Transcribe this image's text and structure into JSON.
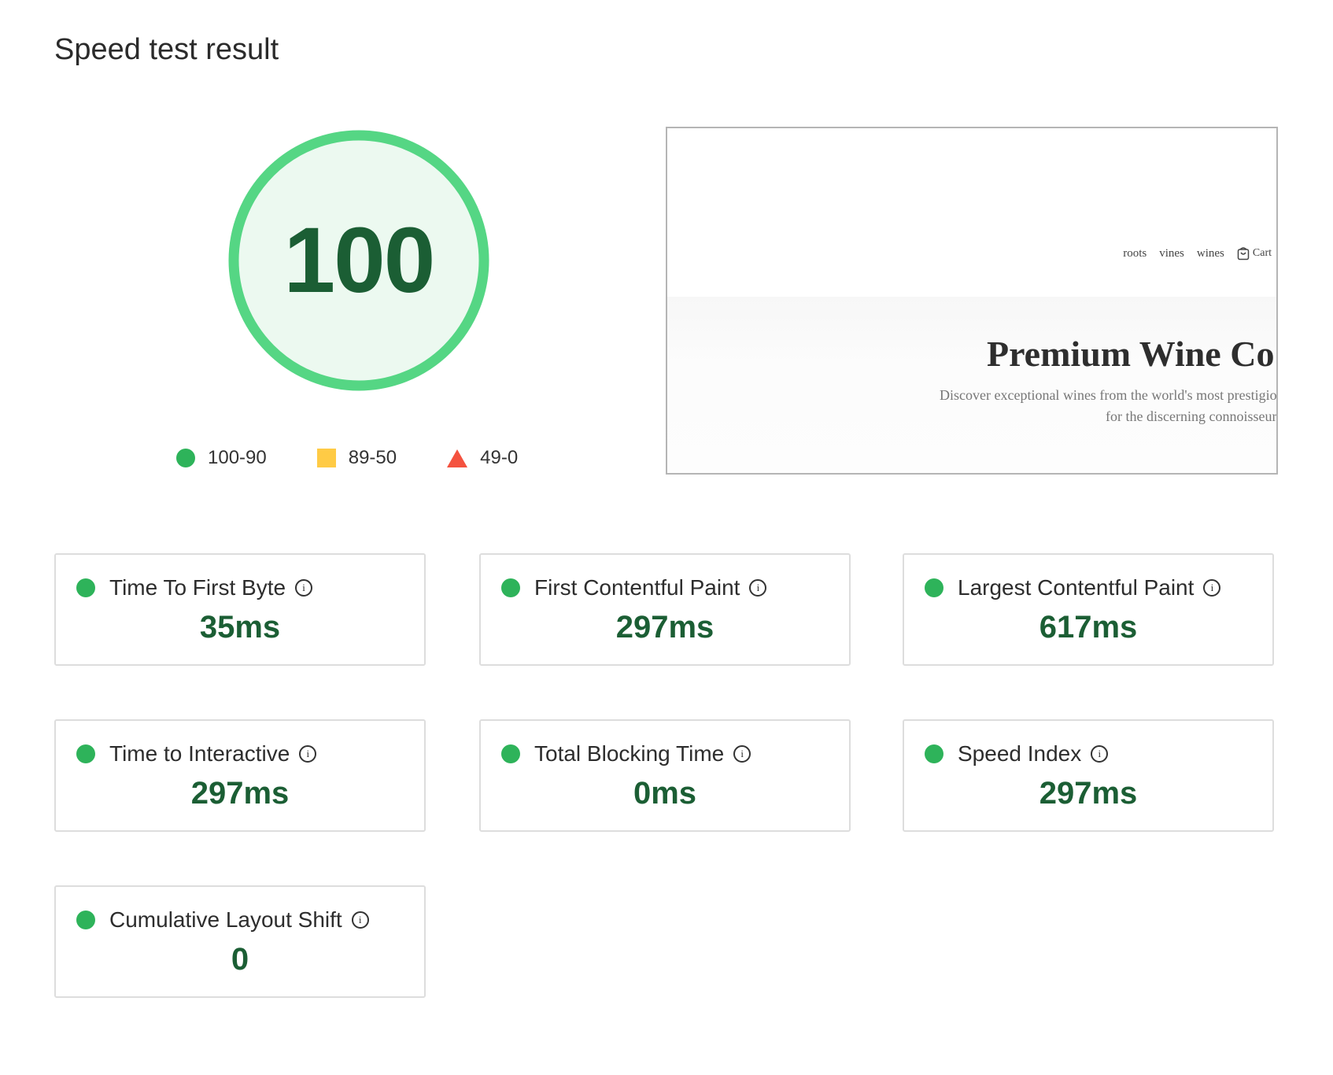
{
  "title": "Speed test result",
  "score": {
    "value": "100",
    "level": 100,
    "color": "#55d684",
    "fill": "#ecf9f0",
    "text_color": "#1b5e34"
  },
  "legend": [
    {
      "icon": "circle",
      "label": "100-90",
      "color": "#2eb35a"
    },
    {
      "icon": "square",
      "label": "89-50",
      "color": "#ffcb45"
    },
    {
      "icon": "triangle",
      "label": "49-0",
      "color": "#f4523f"
    }
  ],
  "preview": {
    "nav": [
      "roots",
      "vines",
      "wines"
    ],
    "cart": "Cart",
    "hero": "Premium Wine Co",
    "sub1": "Discover exceptional wines from the world's most prestigio",
    "sub2": "for the discerning connoisseur"
  },
  "metrics": [
    {
      "label": "Time To First Byte",
      "value": "35ms"
    },
    {
      "label": "First Contentful Paint",
      "value": "297ms"
    },
    {
      "label": "Largest Contentful Paint",
      "value": "617ms"
    },
    {
      "label": "Time to Interactive",
      "value": "297ms"
    },
    {
      "label": "Total Blocking Time",
      "value": "0ms"
    },
    {
      "label": "Speed Index",
      "value": "297ms"
    },
    {
      "label": "Cumulative Layout Shift",
      "value": "0"
    }
  ],
  "info_glyph": "i"
}
